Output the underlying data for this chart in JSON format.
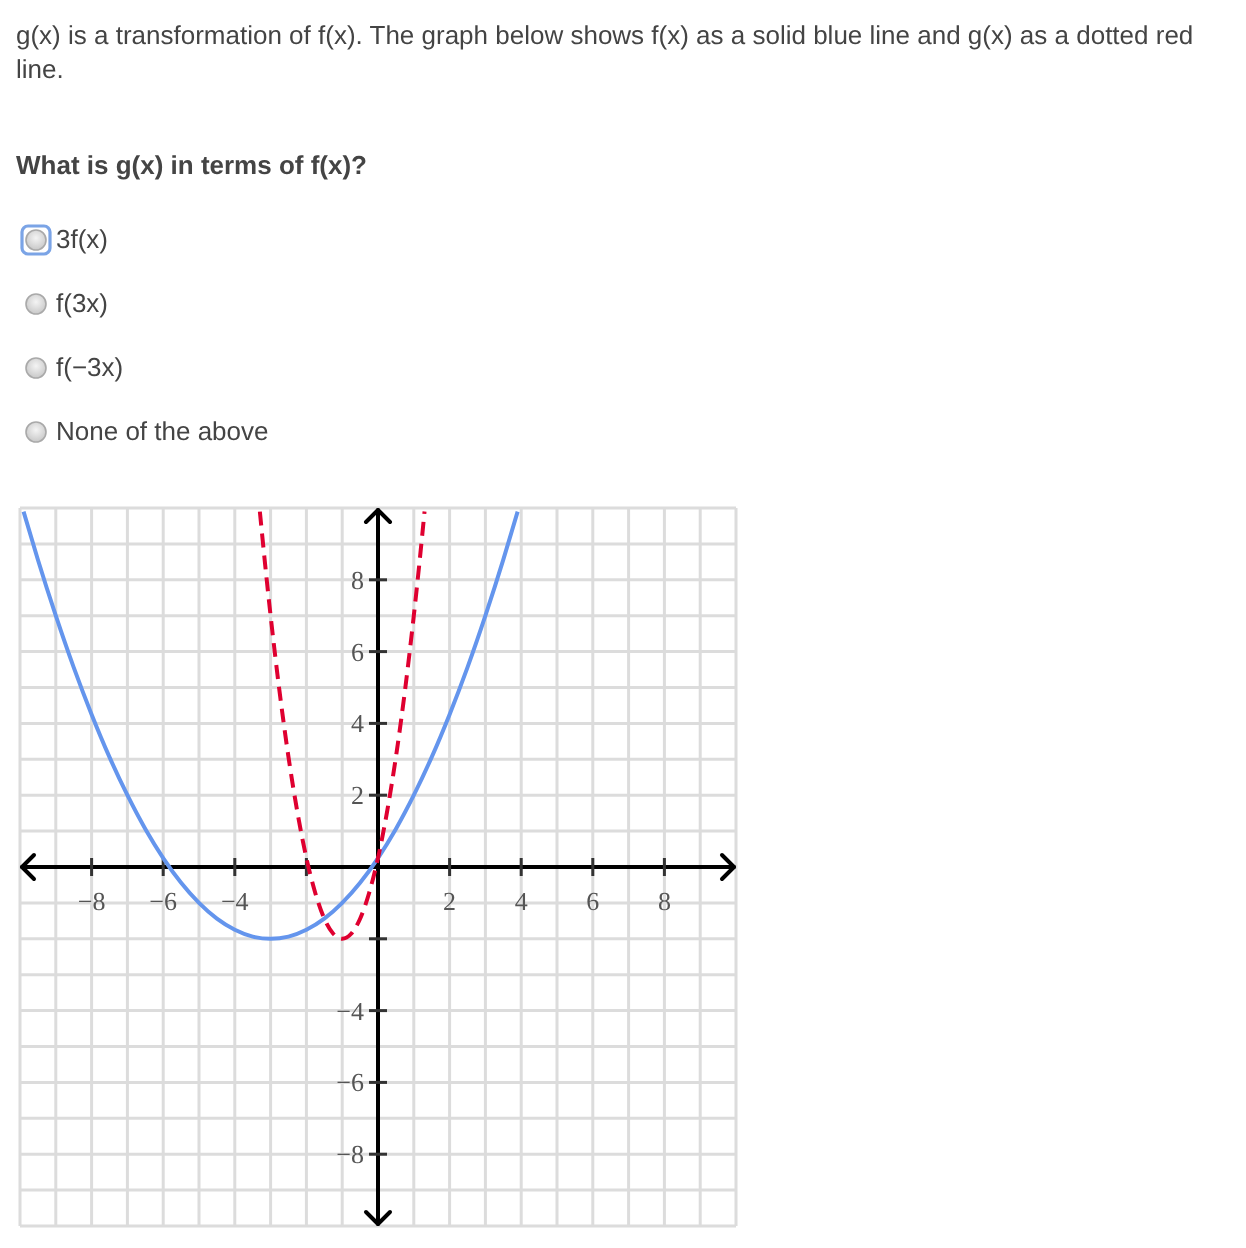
{
  "chart_data": {
    "type": "line",
    "title": "g(x) is a transformation of f(x). The graph below shows f(x) as a solid blue line and g(x) as a dotted red line.",
    "subtitle": "What is g(x) in terms of f(x)?",
    "annotations": [
      "3f(x)",
      "f(3x)",
      "f(−3x)",
      "None of the above"
    ],
    "xlim": [
      -10,
      10
    ],
    "ylim": [
      -10,
      10
    ],
    "xticks": [
      -8,
      -6,
      -4,
      {
        "value": -2,
        "label": null
      },
      2,
      4,
      6,
      8
    ],
    "yticks": [
      -8,
      -6,
      -4,
      {
        "value": -2,
        "label": null
      },
      2,
      4,
      6,
      8
    ],
    "grid": true,
    "series": [
      {
        "color": "#6495ed",
        "line_style": "solid",
        "x": [
          -9.9,
          -9.5,
          -9,
          -8.5,
          -8,
          -7.5,
          -7,
          -6.5,
          -6,
          -5.5,
          -5,
          -4.5,
          -4,
          -3.5,
          -3,
          -2.5,
          -2,
          -1.5,
          -1,
          -0.5,
          0,
          0.5,
          1,
          1.5,
          2,
          2.5,
          3,
          3.5,
          3.9
        ],
        "values": [
          9.9,
          8.56,
          7,
          5.56,
          4.25,
          3.06,
          2,
          1.06,
          0.25,
          -0.44,
          -1,
          -1.44,
          -1.75,
          -1.94,
          -2,
          -1.94,
          -1.75,
          -1.44,
          -1,
          -0.44,
          0.25,
          1.06,
          2,
          3.06,
          4.25,
          5.56,
          7,
          8.56,
          9.9
        ]
      },
      {
        "color": "#df0030",
        "line_style": "dashed",
        "x": [
          -3.3,
          -3.15,
          -3,
          -2.75,
          -2.5,
          -2.25,
          -2,
          -1.75,
          -1.5,
          -1.25,
          -1,
          -0.75,
          -0.5,
          -0.25,
          0,
          0.25,
          0.5,
          0.75,
          1,
          1.15,
          1.3
        ],
        "values": [
          9.9,
          8.4,
          7,
          4.89,
          3.06,
          1.52,
          0.25,
          -0.73,
          -1.44,
          -1.86,
          -2,
          -1.86,
          -1.44,
          -0.73,
          0.25,
          1.52,
          3.06,
          4.89,
          7,
          8.4,
          9.9
        ]
      }
    ]
  }
}
